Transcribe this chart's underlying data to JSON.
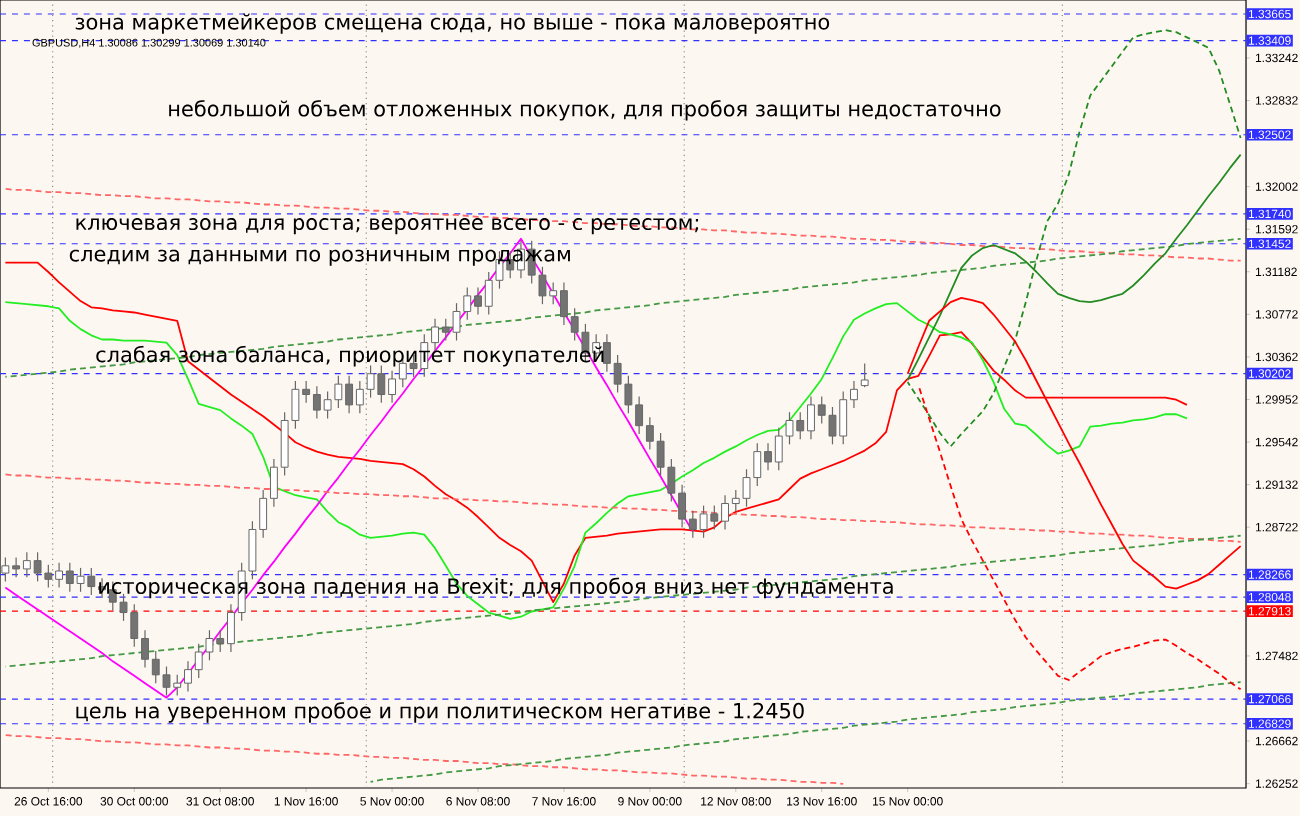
{
  "chart_data": {
    "type": "candlestick",
    "title": "GBPUSD,H4 1.30086 1.30299 1.30069 1.30140",
    "categories": [
      null,
      null,
      null,
      null,
      "26 Oct 16:00",
      null,
      null,
      null,
      null,
      null,
      null,
      null,
      "30 Oct 00:00",
      null,
      null,
      null,
      null,
      null,
      null,
      null,
      "31 Oct 08:00",
      null,
      null,
      null,
      null,
      null,
      null,
      null,
      "1 Nov 16:00",
      null,
      null,
      null,
      null,
      null,
      null,
      null,
      "5 Nov 00:00",
      null,
      null,
      null,
      null,
      null,
      null,
      null,
      "6 Nov 08:00",
      null,
      null,
      null,
      null,
      null,
      null,
      null,
      "7 Nov 16:00",
      null,
      null,
      null,
      null,
      null,
      null,
      null,
      "9 Nov 00:00",
      null,
      null,
      null,
      null,
      null,
      null,
      null,
      "12 Nov 08:00",
      null,
      null,
      null,
      null,
      null,
      null,
      null,
      "13 Nov 16:00",
      null,
      null,
      null,
      null,
      null,
      null,
      null,
      "15 Nov 00:00",
      null,
      null,
      null,
      null,
      null,
      null,
      null,
      null,
      null,
      null,
      null,
      null,
      null,
      null,
      null,
      null,
      null,
      null,
      null,
      null,
      null,
      null,
      null,
      null,
      null,
      null,
      null,
      null,
      null,
      null,
      null
    ],
    "ohlc": [
      [
        1.2828,
        1.2843,
        1.282,
        1.2835
      ],
      [
        1.2835,
        1.2843,
        1.2824,
        1.2832
      ],
      [
        1.2832,
        1.2848,
        1.2824,
        1.284
      ],
      [
        1.284,
        1.2848,
        1.282,
        1.2828
      ],
      [
        1.2828,
        1.2836,
        1.2814,
        1.2822
      ],
      [
        1.2822,
        1.2838,
        1.2814,
        1.283
      ],
      [
        1.283,
        1.2838,
        1.281,
        1.2818
      ],
      [
        1.2818,
        1.2833,
        1.281,
        1.2825
      ],
      [
        1.2825,
        1.2833,
        1.2807,
        1.2815
      ],
      [
        1.2815,
        1.2823,
        1.2804,
        1.2812
      ],
      [
        1.2812,
        1.282,
        1.2792,
        1.28
      ],
      [
        1.28,
        1.2808,
        1.2782,
        1.279
      ],
      [
        1.279,
        1.2798,
        1.2757,
        1.2765
      ],
      [
        1.2765,
        1.2773,
        1.2737,
        1.2745
      ],
      [
        1.2745,
        1.2753,
        1.2722,
        1.273
      ],
      [
        1.273,
        1.2738,
        1.271,
        1.2718
      ],
      [
        1.2718,
        1.273,
        1.271,
        1.2722
      ],
      [
        1.2722,
        1.2743,
        1.2714,
        1.2735
      ],
      [
        1.2735,
        1.276,
        1.2727,
        1.2752
      ],
      [
        1.2752,
        1.2773,
        1.2744,
        1.2765
      ],
      [
        1.2765,
        1.2773,
        1.2752,
        1.276
      ],
      [
        1.276,
        1.2798,
        1.2752,
        1.279
      ],
      [
        1.279,
        1.2838,
        1.2782,
        1.283
      ],
      [
        1.283,
        1.2878,
        1.2822,
        1.287
      ],
      [
        1.287,
        1.2908,
        1.2862,
        1.29
      ],
      [
        1.29,
        1.2938,
        1.2892,
        1.293
      ],
      [
        1.293,
        1.2983,
        1.2922,
        1.2975
      ],
      [
        1.2975,
        1.3013,
        1.2967,
        1.3005
      ],
      [
        1.3005,
        1.3013,
        1.2992,
        1.3
      ],
      [
        1.3,
        1.3008,
        1.2977,
        1.2985
      ],
      [
        1.2985,
        1.3003,
        1.2977,
        1.2995
      ],
      [
        1.2995,
        1.3018,
        1.2987,
        1.301
      ],
      [
        1.301,
        1.3018,
        1.2982,
        1.299
      ],
      [
        1.299,
        1.3013,
        1.2982,
        1.3005
      ],
      [
        1.3005,
        1.3028,
        1.2997,
        1.302
      ],
      [
        1.302,
        1.3028,
        1.2992,
        1.3
      ],
      [
        1.3,
        1.3023,
        1.2992,
        1.3015
      ],
      [
        1.3015,
        1.3038,
        1.3007,
        1.303
      ],
      [
        1.303,
        1.3038,
        1.3017,
        1.3025
      ],
      [
        1.3025,
        1.3058,
        1.3017,
        1.305
      ],
      [
        1.305,
        1.3073,
        1.3042,
        1.3065
      ],
      [
        1.3065,
        1.3073,
        1.3052,
        1.306
      ],
      [
        1.306,
        1.3088,
        1.3052,
        1.308
      ],
      [
        1.308,
        1.3103,
        1.3072,
        1.3095
      ],
      [
        1.3095,
        1.3103,
        1.3077,
        1.3085
      ],
      [
        1.3085,
        1.3118,
        1.3077,
        1.311
      ],
      [
        1.311,
        1.3138,
        1.3102,
        1.313
      ],
      [
        1.313,
        1.3138,
        1.3112,
        1.312
      ],
      [
        1.312,
        1.3148,
        1.3112,
        1.314
      ],
      [
        1.314,
        1.3148,
        1.3107,
        1.3115
      ],
      [
        1.3115,
        1.3123,
        1.3087,
        1.3095
      ],
      [
        1.3095,
        1.3108,
        1.3087,
        1.31
      ],
      [
        1.31,
        1.3108,
        1.3067,
        1.3075
      ],
      [
        1.3075,
        1.3083,
        1.3052,
        1.306
      ],
      [
        1.306,
        1.3068,
        1.3032,
        1.304
      ],
      [
        1.304,
        1.3058,
        1.3032,
        1.305
      ],
      [
        1.305,
        1.3058,
        1.3022,
        1.303
      ],
      [
        1.303,
        1.3038,
        1.3002,
        1.301
      ],
      [
        1.301,
        1.3018,
        1.2982,
        1.299
      ],
      [
        1.299,
        1.2998,
        1.2962,
        1.297
      ],
      [
        1.297,
        1.2978,
        1.2947,
        1.2955
      ],
      [
        1.2955,
        1.2963,
        1.2922,
        1.293
      ],
      [
        1.293,
        1.2938,
        1.2897,
        1.2905
      ],
      [
        1.2905,
        1.2913,
        1.2872,
        1.288
      ],
      [
        1.288,
        1.2888,
        1.2862,
        1.287
      ],
      [
        1.287,
        1.2893,
        1.2862,
        1.2885
      ],
      [
        1.2885,
        1.2893,
        1.287,
        1.2878
      ],
      [
        1.2878,
        1.2903,
        1.287,
        1.2895
      ],
      [
        1.2895,
        1.2908,
        1.2887,
        1.29
      ],
      [
        1.29,
        1.2928,
        1.2892,
        1.292
      ],
      [
        1.292,
        1.2953,
        1.2912,
        1.2945
      ],
      [
        1.2945,
        1.2953,
        1.2927,
        1.2935
      ],
      [
        1.2935,
        1.2968,
        1.2927,
        1.296
      ],
      [
        1.296,
        1.2983,
        1.2952,
        1.2975
      ],
      [
        1.2975,
        1.2983,
        1.2957,
        1.2965
      ],
      [
        1.2965,
        1.2998,
        1.2957,
        1.299
      ],
      [
        1.299,
        1.2998,
        1.2972,
        1.298
      ],
      [
        1.298,
        1.2988,
        1.2952,
        1.296
      ],
      [
        1.296,
        1.3003,
        1.2952,
        1.2995
      ],
      [
        1.2995,
        1.3013,
        1.2987,
        1.3005
      ],
      [
        1.30086,
        1.30299,
        1.30069,
        1.3014
      ],
      null,
      null,
      null,
      null,
      null,
      null,
      null,
      null,
      null,
      null,
      null,
      null,
      null,
      null,
      null,
      null,
      null,
      null,
      null,
      null,
      null,
      null,
      null,
      null,
      null,
      null,
      null,
      null,
      null,
      null,
      null,
      null,
      null,
      null,
      null
    ],
    "series": [
      {
        "type": "line",
        "color": "#ff0000",
        "line_style": "solid",
        "values": [
          1.3127,
          1.3127,
          1.3127,
          1.3127,
          1.3118,
          1.3108,
          1.3099,
          1.309,
          1.3084,
          1.3083,
          1.3081,
          1.308,
          1.3079,
          1.3077,
          1.3075,
          1.3073,
          1.3071,
          1.3032,
          1.3024,
          1.3016,
          1.3008,
          1.3,
          1.2993,
          1.2986,
          1.2979,
          1.2971,
          1.2963,
          1.2954,
          1.2949,
          1.2945,
          1.2942,
          1.294,
          1.2939,
          1.2938,
          1.2936,
          1.2935,
          1.2934,
          1.2933,
          1.2928,
          1.2921,
          1.2912,
          1.2904,
          1.2898,
          1.2891,
          1.2882,
          1.2872,
          1.2862,
          1.2855,
          1.2849,
          1.284,
          1.282,
          1.28,
          1.2818,
          1.2845,
          1.2862,
          1.2863,
          1.2864,
          1.2866,
          1.2867,
          1.2868,
          1.2869,
          1.287,
          1.287,
          1.287,
          1.2869,
          1.2868,
          1.2872,
          1.2881,
          1.2887,
          1.289,
          1.2893,
          1.2896,
          1.2899,
          1.2909,
          1.2919,
          1.2924,
          1.2928,
          1.2932,
          1.2936,
          1.2941,
          1.2946,
          1.2953,
          1.2964,
          1.3004,
          1.3015,
          1.3018,
          1.3037,
          1.3057,
          1.3058,
          1.306,
          1.3049,
          1.3036,
          1.3023,
          1.3014,
          1.3004,
          1.2997,
          1.2997,
          1.2997,
          1.2997,
          1.2997,
          1.2997,
          1.2997,
          1.2997,
          1.2997,
          1.2997,
          1.2997,
          1.2997,
          1.2997,
          1.2997,
          1.2995,
          1.299,
          null,
          null,
          null,
          null,
          null
        ]
      },
      {
        "type": "line",
        "color": "#22ee22",
        "line_style": "solid",
        "values": [
          1.3089,
          1.3088,
          1.3087,
          1.3086,
          1.3085,
          1.3083,
          1.3071,
          1.3063,
          1.3057,
          1.3053,
          1.3053,
          1.3052,
          1.3052,
          1.3052,
          1.3051,
          1.305,
          1.3038,
          1.3015,
          1.2991,
          1.2988,
          1.2985,
          1.2977,
          1.297,
          1.2962,
          1.294,
          1.2911,
          1.2907,
          1.2903,
          1.2901,
          1.2899,
          1.2887,
          1.2877,
          1.2872,
          1.2865,
          1.2862,
          1.2863,
          1.2864,
          1.2866,
          1.2867,
          1.2865,
          1.2852,
          1.2835,
          1.2818,
          1.2806,
          1.2798,
          1.279,
          1.2787,
          1.2784,
          1.2786,
          1.2791,
          1.2793,
          1.2795,
          1.2813,
          1.2835,
          1.2867,
          1.2876,
          1.2886,
          1.2895,
          1.2902,
          1.2904,
          1.2906,
          1.2908,
          1.2914,
          1.2921,
          1.2927,
          1.2934,
          1.2939,
          1.2945,
          1.295,
          1.2956,
          1.2961,
          1.2965,
          1.2966,
          1.2975,
          1.2988,
          1.3001,
          1.3015,
          1.3035,
          1.3056,
          1.3072,
          1.3078,
          1.3083,
          1.3087,
          1.3088,
          1.308,
          1.3072,
          1.3067,
          1.306,
          1.3058,
          1.3055,
          1.305,
          1.3033,
          1.3012,
          1.2986,
          1.2972,
          1.297,
          1.2961,
          1.2951,
          1.2943,
          1.2946,
          1.295,
          1.2969,
          1.297,
          1.2972,
          1.2973,
          1.2975,
          1.2976,
          1.2978,
          1.2981,
          1.2981,
          1.2977,
          null,
          null,
          null,
          null,
          null
        ]
      },
      {
        "type": "line",
        "color": "#ff00ff",
        "line_style": "solid",
        "values": [
          1.2814,
          1.2807,
          1.28,
          1.2793,
          1.2786,
          1.2779,
          1.2772,
          1.2765,
          1.2758,
          1.2751,
          1.2743,
          1.2736,
          1.2729,
          1.2722,
          1.2715,
          1.2708,
          1.2718,
          1.2731,
          1.2745,
          1.2758,
          1.2772,
          1.2785,
          1.2799,
          1.2812,
          1.2826,
          1.2839,
          1.2853,
          1.2866,
          1.288,
          1.2893,
          1.2907,
          1.292,
          1.2934,
          1.2947,
          1.2961,
          1.2974,
          1.2988,
          1.3001,
          1.3015,
          1.3028,
          1.3042,
          1.3055,
          1.3069,
          1.3082,
          1.3096,
          1.3109,
          1.3123,
          1.3136,
          1.315,
          1.3132,
          1.3115,
          1.3097,
          1.3079,
          1.3062,
          1.3044,
          1.3026,
          1.3009,
          1.2991,
          1.2974,
          1.2956,
          1.2938,
          1.2921,
          1.2903,
          1.2885,
          1.2868,
          null,
          null,
          null,
          null,
          null,
          null,
          null,
          null,
          null,
          null,
          null,
          null,
          null,
          null,
          null,
          null,
          null,
          null,
          null,
          null,
          null,
          null,
          null,
          null,
          null,
          null,
          null,
          null,
          null,
          null,
          null,
          null,
          null,
          null,
          null,
          null,
          null,
          null,
          null,
          null,
          null,
          null,
          null,
          null,
          null,
          null,
          null,
          null,
          null,
          null,
          null
        ]
      },
      {
        "type": "line",
        "color": "#ff6666",
        "line_style": "dashed",
        "values": [
          1.3198,
          1.3197,
          1.3197,
          1.3196,
          1.3195,
          1.3195,
          1.3194,
          1.3194,
          1.3193,
          1.3192,
          1.3192,
          1.3191,
          1.3191,
          1.319,
          1.3189,
          1.3189,
          1.3188,
          1.3188,
          1.3187,
          1.3186,
          1.3186,
          1.3185,
          1.3185,
          1.3184,
          1.3183,
          1.3183,
          1.3182,
          1.3182,
          1.3181,
          1.318,
          1.318,
          1.3179,
          1.3179,
          1.3178,
          1.3177,
          1.3177,
          1.3176,
          1.3176,
          1.3175,
          1.3174,
          1.3174,
          1.3173,
          1.3173,
          1.3172,
          1.3171,
          1.3171,
          1.317,
          1.317,
          1.3169,
          1.3168,
          1.3168,
          1.3167,
          1.3167,
          1.3166,
          1.3165,
          1.3165,
          1.3164,
          1.3164,
          1.3163,
          1.3162,
          1.3162,
          1.3161,
          1.3161,
          1.316,
          1.3159,
          1.3159,
          1.3158,
          1.3158,
          1.3157,
          1.3156,
          1.3156,
          1.3155,
          1.3155,
          1.3154,
          1.3153,
          1.3153,
          1.3152,
          1.3152,
          1.3151,
          1.315,
          1.315,
          1.3149,
          1.3149,
          1.3148,
          1.3147,
          1.3147,
          1.3146,
          1.3146,
          1.3145,
          1.3144,
          1.3144,
          1.3143,
          1.3143,
          1.3142,
          1.3141,
          1.3141,
          1.314,
          1.314,
          1.3139,
          1.3138,
          1.3138,
          1.3137,
          1.3137,
          1.3136,
          1.3135,
          1.3135,
          1.3134,
          1.3134,
          1.3133,
          1.3132,
          1.3132,
          1.3131,
          1.3131,
          1.313,
          1.3129,
          1.3129
        ]
      },
      {
        "type": "line",
        "color": "#449944",
        "line_style": "dashed",
        "values": [
          1.3017,
          1.3018,
          1.3019,
          1.302,
          1.3021,
          1.3022,
          1.3024,
          1.3025,
          1.3026,
          1.3027,
          1.3028,
          1.3029,
          1.3031,
          1.3032,
          1.3033,
          1.3034,
          1.3035,
          1.3036,
          1.3038,
          1.3039,
          1.304,
          1.3041,
          1.3042,
          1.3043,
          1.3044,
          1.3046,
          1.3047,
          1.3048,
          1.3049,
          1.305,
          1.3051,
          1.3053,
          1.3054,
          1.3055,
          1.3056,
          1.3057,
          1.3058,
          1.306,
          1.3061,
          1.3062,
          1.3063,
          1.3064,
          1.3065,
          1.3067,
          1.3068,
          1.3069,
          1.307,
          1.3071,
          1.3072,
          1.3074,
          1.3075,
          1.3076,
          1.3077,
          1.3078,
          1.3079,
          1.3081,
          1.3082,
          1.3083,
          1.3084,
          1.3085,
          1.3086,
          1.3088,
          1.3089,
          1.309,
          1.3091,
          1.3092,
          1.3093,
          1.3094,
          1.3096,
          1.3097,
          1.3098,
          1.3099,
          1.31,
          1.3101,
          1.3103,
          1.3104,
          1.3105,
          1.3106,
          1.3107,
          1.3108,
          1.311,
          1.3111,
          1.3112,
          1.3113,
          1.3114,
          1.3115,
          1.3117,
          1.3118,
          1.3119,
          1.312,
          1.3121,
          1.3122,
          1.3124,
          1.3125,
          1.3126,
          1.3127,
          1.3128,
          1.3129,
          1.3131,
          1.3132,
          1.3133,
          1.3134,
          1.3135,
          1.3136,
          1.3138,
          1.3139,
          1.314,
          1.3141,
          1.3142,
          1.3143,
          1.3145,
          1.3146,
          1.3147,
          1.3148,
          1.3149,
          1.315
        ]
      },
      {
        "type": "line",
        "color": "#ff6666",
        "line_style": "dashed",
        "values": [
          1.2923,
          1.2922,
          1.2922,
          1.2921,
          1.292,
          1.292,
          1.2919,
          1.2919,
          1.2918,
          1.2918,
          1.2917,
          1.2917,
          1.2916,
          1.2915,
          1.2915,
          1.2914,
          1.2914,
          1.2913,
          1.2913,
          1.2912,
          1.2912,
          1.2911,
          1.291,
          1.291,
          1.2909,
          1.2909,
          1.2908,
          1.2908,
          1.2907,
          1.2907,
          1.2906,
          1.2905,
          1.2905,
          1.2904,
          1.2904,
          1.2903,
          1.2903,
          1.2902,
          1.2902,
          1.2901,
          1.29,
          1.29,
          1.2899,
          1.2899,
          1.2898,
          1.2898,
          1.2897,
          1.2897,
          1.2896,
          1.2895,
          1.2895,
          1.2894,
          1.2894,
          1.2893,
          1.2892,
          1.2892,
          1.2891,
          1.2891,
          1.289,
          1.289,
          1.2889,
          1.2889,
          1.2888,
          1.2888,
          1.2887,
          1.2887,
          1.2886,
          1.2885,
          1.2885,
          1.2884,
          1.2884,
          1.2883,
          1.2883,
          1.2882,
          1.2882,
          1.2881,
          1.288,
          1.288,
          1.2879,
          1.2879,
          1.2878,
          1.2878,
          1.2877,
          1.2877,
          1.2876,
          1.2875,
          1.2875,
          1.2874,
          1.2874,
          1.2873,
          1.2872,
          1.2872,
          1.2871,
          1.2871,
          1.287,
          1.287,
          1.2869,
          1.2869,
          1.2868,
          1.2868,
          1.2867,
          1.2866,
          1.2866,
          1.2865,
          1.2865,
          1.2864,
          1.2864,
          1.2863,
          1.2862,
          1.2862,
          1.2861,
          1.2861,
          1.286,
          1.2859,
          1.2859,
          1.2858
        ]
      },
      {
        "type": "line",
        "color": "#449944",
        "line_style": "dashed",
        "values": [
          1.2738,
          1.2739,
          1.274,
          1.2741,
          1.2742,
          1.2743,
          1.2744,
          1.2745,
          1.2746,
          1.2748,
          1.2749,
          1.275,
          1.2751,
          1.2752,
          1.2753,
          1.2754,
          1.2755,
          1.2756,
          1.2757,
          1.2759,
          1.276,
          1.2761,
          1.2762,
          1.2763,
          1.2764,
          1.2765,
          1.2766,
          1.2767,
          1.2768,
          1.277,
          1.2771,
          1.2772,
          1.2773,
          1.2774,
          1.2775,
          1.2776,
          1.2777,
          1.2778,
          1.2779,
          1.2781,
          1.2782,
          1.2783,
          1.2784,
          1.2785,
          1.2786,
          1.2787,
          1.2788,
          1.2789,
          1.279,
          1.2792,
          1.2793,
          1.2794,
          1.2795,
          1.2796,
          1.2797,
          1.2798,
          1.2799,
          1.28,
          1.2801,
          1.2803,
          1.2804,
          1.2805,
          1.2806,
          1.2807,
          1.2808,
          1.2809,
          1.281,
          1.2811,
          1.2812,
          1.2814,
          1.2815,
          1.2816,
          1.2817,
          1.2818,
          1.2819,
          1.282,
          1.2821,
          1.2822,
          1.2823,
          1.2825,
          1.2826,
          1.2827,
          1.2828,
          1.2829,
          1.283,
          1.2831,
          1.2832,
          1.2833,
          1.2834,
          1.2836,
          1.2837,
          1.2838,
          1.2839,
          1.284,
          1.2841,
          1.2842,
          1.2843,
          1.2844,
          1.2845,
          1.2847,
          1.2848,
          1.2849,
          1.285,
          1.2851,
          1.2852,
          1.2853,
          1.2854,
          1.2855,
          1.2856,
          1.2858,
          1.2859,
          1.286,
          1.2861,
          1.2862,
          1.2863,
          1.2864
        ]
      },
      {
        "type": "line",
        "color": "#ff6666",
        "line_style": "dashed",
        "values": [
          1.2672,
          1.2671,
          1.2671,
          1.267,
          1.2669,
          1.2669,
          1.2668,
          1.2668,
          1.2667,
          1.2666,
          1.2666,
          1.2665,
          1.2665,
          1.2664,
          1.2663,
          1.2663,
          1.2662,
          1.2662,
          1.2661,
          1.266,
          1.266,
          1.2659,
          1.2659,
          1.2658,
          1.2657,
          1.2657,
          1.2656,
          1.2656,
          1.2655,
          1.2654,
          1.2654,
          1.2653,
          1.2653,
          1.2652,
          1.2651,
          1.2651,
          1.265,
          1.265,
          1.2649,
          1.2648,
          1.2648,
          1.2647,
          1.2647,
          1.2646,
          1.2645,
          1.2645,
          1.2644,
          1.2644,
          1.2643,
          1.2642,
          1.2642,
          1.2641,
          1.2641,
          1.264,
          1.2639,
          1.2639,
          1.2638,
          1.2638,
          1.2637,
          1.2636,
          1.2636,
          1.2635,
          1.2635,
          1.2634,
          1.2633,
          1.2633,
          1.2632,
          1.2632,
          1.2631,
          1.263,
          1.263,
          1.2629,
          1.2629,
          1.2628,
          1.2627,
          1.2627,
          1.2626,
          1.2626,
          1.2625,
          null,
          null,
          null,
          null,
          null,
          null,
          null,
          null,
          null,
          null,
          null,
          null,
          null,
          null,
          null,
          null,
          null,
          null,
          null,
          null,
          null,
          null,
          null,
          null,
          null,
          null,
          null,
          null,
          null,
          null,
          null,
          null,
          null,
          null,
          null,
          null,
          null
        ]
      },
      {
        "type": "line",
        "color": "#449944",
        "line_style": "dashed",
        "values": [
          null,
          null,
          null,
          null,
          null,
          null,
          null,
          null,
          null,
          null,
          null,
          null,
          null,
          null,
          null,
          null,
          null,
          null,
          null,
          null,
          null,
          null,
          null,
          null,
          null,
          null,
          null,
          null,
          null,
          null,
          null,
          null,
          null,
          null,
          1.2627,
          1.2629,
          1.263,
          1.2631,
          1.2632,
          1.2633,
          1.2634,
          1.2636,
          1.2637,
          1.2638,
          1.2639,
          1.264,
          1.2642,
          1.2643,
          1.2644,
          1.2645,
          1.2646,
          1.2647,
          1.2649,
          1.265,
          1.2651,
          1.2652,
          1.2653,
          1.2655,
          1.2656,
          1.2657,
          1.2658,
          1.2659,
          1.266,
          1.2662,
          1.2663,
          1.2664,
          1.2665,
          1.2666,
          1.2668,
          1.2669,
          1.267,
          1.2671,
          1.2672,
          1.2673,
          1.2675,
          1.2676,
          1.2677,
          1.2678,
          1.2679,
          1.2681,
          1.2682,
          1.2683,
          1.2684,
          1.2685,
          1.2687,
          1.2688,
          1.2689,
          1.269,
          1.2691,
          1.2692,
          1.2694,
          1.2695,
          1.2696,
          1.2697,
          1.2699,
          1.27,
          1.2701,
          1.2702,
          1.2703,
          1.2705,
          1.2706,
          1.2707,
          1.2708,
          1.2709,
          1.271,
          1.2712,
          1.2713,
          1.2714,
          1.2715,
          1.2716,
          1.2717,
          1.2718,
          1.272,
          1.2721,
          1.2722,
          1.2723
        ]
      },
      {
        "type": "line",
        "color": "#228b22",
        "line_style": "solid",
        "values": [
          null,
          null,
          null,
          null,
          null,
          null,
          null,
          null,
          null,
          null,
          null,
          null,
          null,
          null,
          null,
          null,
          null,
          null,
          null,
          null,
          null,
          null,
          null,
          null,
          null,
          null,
          null,
          null,
          null,
          null,
          null,
          null,
          null,
          null,
          null,
          null,
          null,
          null,
          null,
          null,
          null,
          null,
          null,
          null,
          null,
          null,
          null,
          null,
          null,
          null,
          null,
          null,
          null,
          null,
          null,
          null,
          null,
          null,
          null,
          null,
          null,
          null,
          null,
          null,
          null,
          null,
          null,
          null,
          null,
          null,
          null,
          null,
          null,
          null,
          null,
          null,
          null,
          null,
          null,
          null,
          null,
          null,
          null,
          null,
          1.3014,
          1.3034,
          1.3055,
          1.3076,
          1.3099,
          1.3122,
          1.3134,
          1.3141,
          1.3144,
          1.314,
          1.3136,
          1.3128,
          1.3118,
          1.3107,
          1.3097,
          1.3093,
          1.309,
          1.3089,
          1.3091,
          1.3094,
          1.3097,
          1.3105,
          1.3115,
          1.3126,
          1.3136,
          1.315,
          1.3163,
          1.3177,
          1.3191,
          1.3204,
          1.3218,
          1.3231
        ]
      },
      {
        "type": "line",
        "color": "#228b22",
        "line_style": "dashed",
        "values": [
          null,
          null,
          null,
          null,
          null,
          null,
          null,
          null,
          null,
          null,
          null,
          null,
          null,
          null,
          null,
          null,
          null,
          null,
          null,
          null,
          null,
          null,
          null,
          null,
          null,
          null,
          null,
          null,
          null,
          null,
          null,
          null,
          null,
          null,
          null,
          null,
          null,
          null,
          null,
          null,
          null,
          null,
          null,
          null,
          null,
          null,
          null,
          null,
          null,
          null,
          null,
          null,
          null,
          null,
          null,
          null,
          null,
          null,
          null,
          null,
          null,
          null,
          null,
          null,
          null,
          null,
          null,
          null,
          null,
          null,
          null,
          null,
          null,
          null,
          null,
          null,
          null,
          null,
          null,
          null,
          null,
          null,
          null,
          null,
          1.3012,
          1.2996,
          1.298,
          1.2963,
          1.295,
          1.2962,
          1.2973,
          1.2984,
          1.3001,
          1.3027,
          1.3052,
          1.3089,
          1.313,
          1.3167,
          1.3184,
          1.3212,
          1.3253,
          1.3288,
          1.3302,
          1.3316,
          1.333,
          1.3344,
          1.3347,
          1.3349,
          1.3351,
          1.3349,
          1.3344,
          1.3339,
          1.3334,
          1.3312,
          1.328,
          1.3247
        ]
      },
      {
        "type": "line",
        "color": "#ff0000",
        "line_style": "solid",
        "values": [
          null,
          null,
          null,
          null,
          null,
          null,
          null,
          null,
          null,
          null,
          null,
          null,
          null,
          null,
          null,
          null,
          null,
          null,
          null,
          null,
          null,
          null,
          null,
          null,
          null,
          null,
          null,
          null,
          null,
          null,
          null,
          null,
          null,
          null,
          null,
          null,
          null,
          null,
          null,
          null,
          null,
          null,
          null,
          null,
          null,
          null,
          null,
          null,
          null,
          null,
          null,
          null,
          null,
          null,
          null,
          null,
          null,
          null,
          null,
          null,
          null,
          null,
          null,
          null,
          null,
          null,
          null,
          null,
          null,
          null,
          null,
          null,
          null,
          null,
          null,
          null,
          null,
          null,
          null,
          null,
          null,
          null,
          null,
          null,
          1.302,
          1.3046,
          1.3071,
          1.308,
          1.3089,
          1.3093,
          1.3091,
          1.3088,
          1.3077,
          1.3064,
          1.3051,
          1.3033,
          1.3013,
          1.2993,
          1.2973,
          1.2953,
          1.2934,
          1.2914,
          1.2894,
          1.2875,
          1.2856,
          1.284,
          1.2832,
          1.2824,
          1.2815,
          1.2813,
          1.2817,
          1.2821,
          1.2827,
          1.2836,
          1.2845,
          1.2854
        ]
      },
      {
        "type": "line",
        "color": "#ff0000",
        "line_style": "dashed",
        "values": [
          null,
          null,
          null,
          null,
          null,
          null,
          null,
          null,
          null,
          null,
          null,
          null,
          null,
          null,
          null,
          null,
          null,
          null,
          null,
          null,
          null,
          null,
          null,
          null,
          null,
          null,
          null,
          null,
          null,
          null,
          null,
          null,
          null,
          null,
          null,
          null,
          null,
          null,
          null,
          null,
          null,
          null,
          null,
          null,
          null,
          null,
          null,
          null,
          null,
          null,
          null,
          null,
          null,
          null,
          null,
          null,
          null,
          null,
          null,
          null,
          null,
          null,
          null,
          null,
          null,
          null,
          null,
          null,
          null,
          null,
          null,
          null,
          null,
          null,
          null,
          null,
          null,
          null,
          null,
          null,
          null,
          null,
          null,
          null,
          null,
          1.3009,
          1.2977,
          1.2945,
          1.2912,
          1.288,
          1.2859,
          1.284,
          1.2821,
          1.2802,
          1.2783,
          1.2766,
          1.2753,
          1.2741,
          1.2729,
          1.2725,
          1.2733,
          1.274,
          1.2748,
          1.2752,
          1.2755,
          1.2757,
          1.276,
          1.2763,
          1.2764,
          1.2758,
          1.2751,
          1.2745,
          1.2738,
          1.2731,
          1.2723,
          1.2716
        ]
      }
    ],
    "ylim": [
      1.2621,
      1.338
    ],
    "yticks": [
      1.33242,
      1.32832,
      1.32002,
      1.31592,
      1.31182,
      1.30772,
      1.30362,
      1.29952,
      1.29542,
      1.29132,
      1.28722,
      1.27482,
      1.26662,
      1.26252
    ],
    "ref_lines": [
      {
        "axis": "y",
        "value": 1.33665,
        "label": "1.33665",
        "color": "#3030ff",
        "line_style": "dashed"
      },
      {
        "axis": "y",
        "value": 1.33409,
        "label": "1.33409",
        "color": "#3030ff",
        "line_style": "dashed"
      },
      {
        "axis": "y",
        "value": 1.32502,
        "label": "1.32502",
        "color": "#3030ff",
        "line_style": "dashed"
      },
      {
        "axis": "y",
        "value": 1.3174,
        "label": "1.31740",
        "color": "#3030ff",
        "line_style": "dashed"
      },
      {
        "axis": "y",
        "value": 1.31452,
        "label": "1.31452",
        "color": "#3030ff",
        "line_style": "dashed"
      },
      {
        "axis": "y",
        "value": 1.30202,
        "label": "1.30202",
        "color": "#3030ff",
        "line_style": "dashed"
      },
      {
        "axis": "y",
        "value": 1.28266,
        "label": "1.28266",
        "color": "#3030ff",
        "line_style": "dashed"
      },
      {
        "axis": "y",
        "value": 1.28048,
        "label": "1.28048",
        "color": "#3030ff",
        "line_style": "dashed"
      },
      {
        "axis": "y",
        "value": 1.27913,
        "label": "1.27913",
        "color": "#ff0000",
        "line_style": "dashed"
      },
      {
        "axis": "y",
        "value": 1.27066,
        "label": "1.27066",
        "color": "#3030ff",
        "line_style": "dashed"
      },
      {
        "axis": "y",
        "value": 1.26829,
        "label": "1.26829",
        "color": "#3030ff",
        "line_style": "dashed"
      }
    ],
    "annotations": [
      "зона маркетмейкеров смещена сюда, но выше - пока маловероятно",
      "небольшой объем отложенных покупок, для пробоя защиты недостаточно",
      "ключевая зона для роста; вероятнее всего - с ретестом;",
      "следим за данными по розничным продажам",
      "слабая зона баланса, приоритет покупателей",
      "историческая зона падения на Brexit; для пробоя вниз нет фундамента",
      "цель на уверенном пробое и при политическом негативе - 1.2450"
    ]
  }
}
